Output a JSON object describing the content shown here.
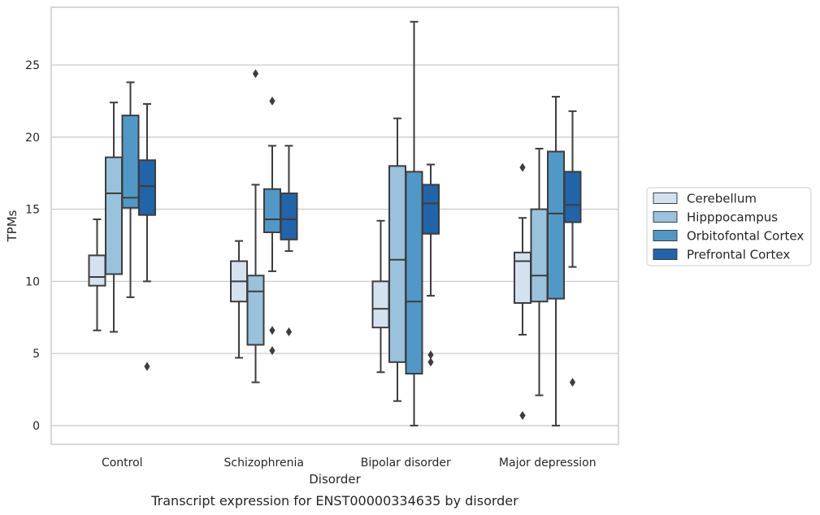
{
  "chart_data": {
    "type": "box",
    "caption": "Transcript expression for ENST00000334635 by disorder",
    "xlabel": "Disorder",
    "ylabel": "TPMs",
    "ylim": [
      -1.3,
      29
    ],
    "yticks": [
      0,
      5,
      10,
      15,
      20,
      25
    ],
    "grid": "horizontal",
    "legend_position": "right",
    "categories": [
      "Control",
      "Schizophrenia",
      "Bipolar disorder",
      "Major depression"
    ],
    "series": [
      {
        "name": "Cerebellum",
        "color": "#d4e2f0",
        "boxes": [
          {
            "whisker_low": 6.6,
            "q1": 9.7,
            "median": 10.3,
            "q3": 11.8,
            "whisker_high": 14.3,
            "outliers": []
          },
          {
            "whisker_low": 4.7,
            "q1": 8.6,
            "median": 10.0,
            "q3": 11.4,
            "whisker_high": 12.8,
            "outliers": []
          },
          {
            "whisker_low": 3.7,
            "q1": 6.8,
            "median": 8.1,
            "q3": 10.0,
            "whisker_high": 14.2,
            "outliers": []
          },
          {
            "whisker_low": 6.3,
            "q1": 8.5,
            "median": 11.4,
            "q3": 12.0,
            "whisker_high": 14.4,
            "outliers": [
              17.9,
              0.7
            ]
          }
        ]
      },
      {
        "name": "Hipppocampus",
        "color": "#9ac2dd",
        "boxes": [
          {
            "whisker_low": 6.5,
            "q1": 10.5,
            "median": 16.1,
            "q3": 18.6,
            "whisker_high": 22.4,
            "outliers": []
          },
          {
            "whisker_low": 3.0,
            "q1": 5.6,
            "median": 9.3,
            "q3": 10.4,
            "whisker_high": 16.7,
            "outliers": [
              24.4
            ]
          },
          {
            "whisker_low": 1.7,
            "q1": 4.4,
            "median": 11.5,
            "q3": 18.0,
            "whisker_high": 21.3,
            "outliers": []
          },
          {
            "whisker_low": 2.1,
            "q1": 8.6,
            "median": 10.4,
            "q3": 15.0,
            "whisker_high": 19.2,
            "outliers": []
          }
        ]
      },
      {
        "name": "Orbitofontal Cortex",
        "color": "#5298c7",
        "boxes": [
          {
            "whisker_low": 8.9,
            "q1": 15.1,
            "median": 15.8,
            "q3": 21.5,
            "whisker_high": 23.8,
            "outliers": []
          },
          {
            "whisker_low": 10.7,
            "q1": 13.4,
            "median": 14.3,
            "q3": 16.4,
            "whisker_high": 19.4,
            "outliers": [
              22.5,
              6.6,
              5.2
            ]
          },
          {
            "whisker_low": 0.0,
            "q1": 3.6,
            "median": 8.6,
            "q3": 17.6,
            "whisker_high": 28.0,
            "outliers": []
          },
          {
            "whisker_low": 0.0,
            "q1": 8.8,
            "median": 14.7,
            "q3": 19.0,
            "whisker_high": 22.8,
            "outliers": []
          }
        ]
      },
      {
        "name": "Prefrontal Cortex",
        "color": "#2264a9",
        "boxes": [
          {
            "whisker_low": 10.0,
            "q1": 14.6,
            "median": 16.6,
            "q3": 18.4,
            "whisker_high": 22.3,
            "outliers": [
              4.1
            ]
          },
          {
            "whisker_low": 12.1,
            "q1": 12.9,
            "median": 14.3,
            "q3": 16.1,
            "whisker_high": 19.4,
            "outliers": [
              6.5
            ]
          },
          {
            "whisker_low": 9.0,
            "q1": 13.3,
            "median": 15.4,
            "q3": 16.7,
            "whisker_high": 18.1,
            "outliers": [
              4.9,
              4.4
            ]
          },
          {
            "whisker_low": 11.0,
            "q1": 14.1,
            "median": 15.3,
            "q3": 17.6,
            "whisker_high": 21.8,
            "outliers": [
              3.0
            ]
          }
        ]
      }
    ]
  }
}
